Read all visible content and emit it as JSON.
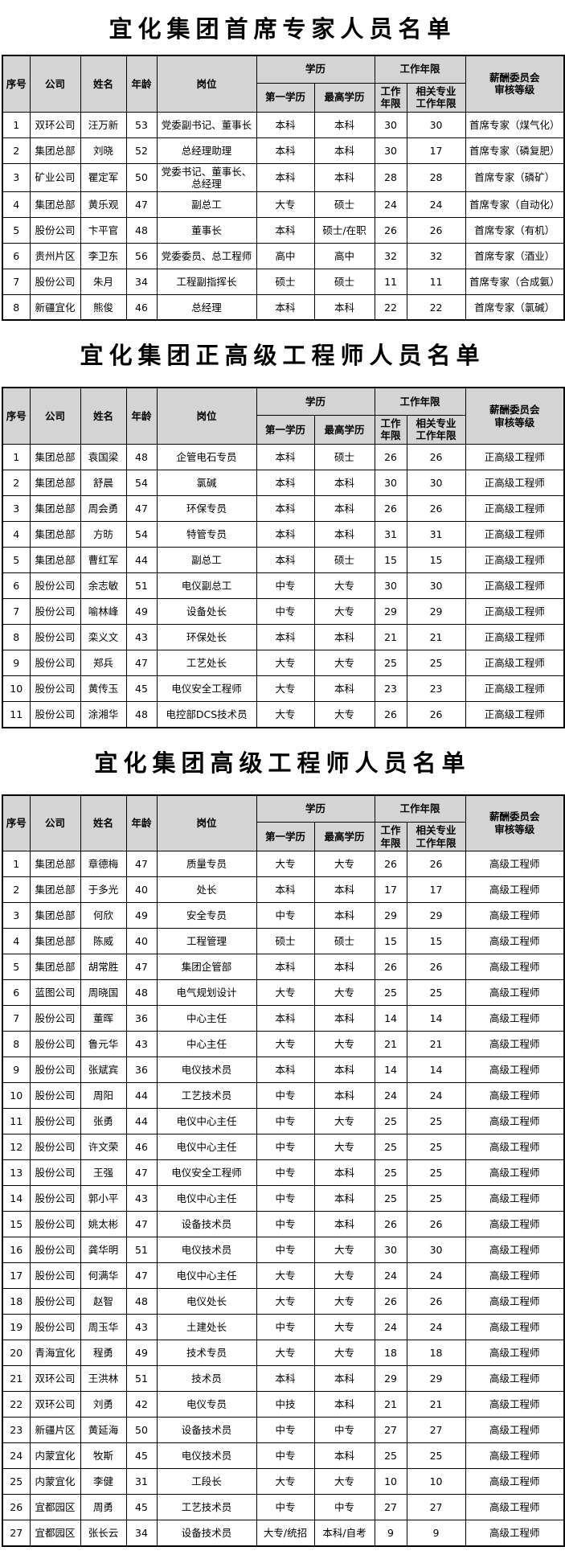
{
  "colors": {
    "header_bg": "#d4d4d4",
    "cell_bg": "#ffffff",
    "border": "#000000",
    "text": "#000000"
  },
  "tables": [
    {
      "title": "宜化集团首席专家人员名单",
      "header": {
        "no": "序号",
        "company": "公司",
        "name": "姓名",
        "age": "年龄",
        "position": "岗位",
        "education_group": "学历",
        "first_education": "第一学历",
        "highest_education": "最高学历",
        "work_years_group": "工作年限",
        "work_years": "工作\n年限",
        "related_work_years": "相关专业\n工作年限",
        "review_level": "薪酬委员会\n审核等级"
      },
      "rows": [
        [
          "1",
          "双环公司",
          "汪万新",
          "53",
          "党委副书记、董事长",
          "本科",
          "本科",
          "30",
          "30",
          "首席专家（煤气化）"
        ],
        [
          "2",
          "集团总部",
          "刘晓",
          "52",
          "总经理助理",
          "本科",
          "本科",
          "30",
          "17",
          "首席专家（磷复肥）"
        ],
        [
          "3",
          "矿业公司",
          "瞿定军",
          "50",
          "党委书记、董事长、总经理",
          "本科",
          "本科",
          "28",
          "28",
          "首席专家（磷矿）"
        ],
        [
          "4",
          "集团总部",
          "黄乐观",
          "47",
          "副总工",
          "大专",
          "硕士",
          "24",
          "24",
          "首席专家（自动化）"
        ],
        [
          "5",
          "股份公司",
          "卞平官",
          "48",
          "董事长",
          "本科",
          "硕士/在职",
          "26",
          "26",
          "首席专家（有机）"
        ],
        [
          "6",
          "贵州片区",
          "李卫东",
          "56",
          "党委委员、总工程师",
          "高中",
          "高中",
          "32",
          "32",
          "首席专家（酒业）"
        ],
        [
          "7",
          "股份公司",
          "朱月",
          "34",
          "工程副指挥长",
          "硕士",
          "硕士",
          "11",
          "11",
          "首席专家（合成氨）"
        ],
        [
          "8",
          "新疆宜化",
          "熊俊",
          "46",
          "总经理",
          "本科",
          "本科",
          "22",
          "22",
          "首席专家（氯碱）"
        ]
      ]
    },
    {
      "title": "宜化集团正高级工程师人员名单",
      "header": {
        "no": "序号",
        "company": "公司",
        "name": "姓名",
        "age": "年龄",
        "position": "岗位",
        "education_group": "学历",
        "first_education": "第一学历",
        "highest_education": "最高学历",
        "work_years_group": "工作年限",
        "work_years": "工作\n年限",
        "related_work_years": "相关专业\n工作年限",
        "review_level": "薪酬委员会\n审核等级"
      },
      "rows": [
        [
          "1",
          "集团总部",
          "袁国梁",
          "48",
          "企管电石专员",
          "本科",
          "硕士",
          "26",
          "26",
          "正高级工程师"
        ],
        [
          "2",
          "集团总部",
          "舒晨",
          "54",
          "氯碱",
          "本科",
          "本科",
          "30",
          "30",
          "正高级工程师"
        ],
        [
          "3",
          "集团总部",
          "周会勇",
          "47",
          "环保专员",
          "本科",
          "本科",
          "26",
          "26",
          "正高级工程师"
        ],
        [
          "4",
          "集团总部",
          "方昉",
          "54",
          "特管专员",
          "本科",
          "本科",
          "31",
          "31",
          "正高级工程师"
        ],
        [
          "5",
          "集团总部",
          "曹红军",
          "44",
          "副总工",
          "本科",
          "硕士",
          "15",
          "15",
          "正高级工程师"
        ],
        [
          "6",
          "股份公司",
          "余志敏",
          "51",
          "电仪副总工",
          "中专",
          "大专",
          "30",
          "30",
          "正高级工程师"
        ],
        [
          "7",
          "股份公司",
          "喻林峰",
          "49",
          "设备处长",
          "中专",
          "大专",
          "29",
          "29",
          "正高级工程师"
        ],
        [
          "8",
          "股份公司",
          "栾义文",
          "43",
          "环保处长",
          "本科",
          "本科",
          "21",
          "21",
          "正高级工程师"
        ],
        [
          "9",
          "股份公司",
          "郑兵",
          "47",
          "工艺处长",
          "大专",
          "大专",
          "25",
          "25",
          "正高级工程师"
        ],
        [
          "10",
          "股份公司",
          "黄传玉",
          "45",
          "电仪安全工程师",
          "大专",
          "本科",
          "23",
          "23",
          "正高级工程师"
        ],
        [
          "11",
          "股份公司",
          "涂湘华",
          "48",
          "电控部DCS技术员",
          "大专",
          "大专",
          "26",
          "26",
          "正高级工程师"
        ]
      ]
    },
    {
      "title": "宜化集团高级工程师人员名单",
      "header": {
        "no": "序号",
        "company": "公司",
        "name": "姓名",
        "age": "年龄",
        "position": "岗位",
        "education_group": "学历",
        "first_education": "第一学历",
        "highest_education": "最高学历",
        "work_years_group": "工作年限",
        "work_years": "工作\n年限",
        "related_work_years": "相关专业\n工作年限",
        "review_level": "薪酬委员会\n审核等级"
      },
      "rows": [
        [
          "1",
          "集团总部",
          "章德梅",
          "47",
          "质量专员",
          "大专",
          "大专",
          "26",
          "26",
          "高级工程师"
        ],
        [
          "2",
          "集团总部",
          "于多光",
          "40",
          "处长",
          "本科",
          "本科",
          "17",
          "17",
          "高级工程师"
        ],
        [
          "3",
          "集团总部",
          "何欣",
          "49",
          "安全专员",
          "中专",
          "本科",
          "29",
          "29",
          "高级工程师"
        ],
        [
          "4",
          "集团总部",
          "陈威",
          "40",
          "工程管理",
          "硕士",
          "硕士",
          "15",
          "15",
          "高级工程师"
        ],
        [
          "5",
          "集团总部",
          "胡常胜",
          "47",
          "集团企管部",
          "本科",
          "本科",
          "26",
          "26",
          "高级工程师"
        ],
        [
          "6",
          "蓝图公司",
          "周晓国",
          "48",
          "电气规划设计",
          "大专",
          "大专",
          "25",
          "25",
          "高级工程师"
        ],
        [
          "7",
          "股份公司",
          "董晖",
          "36",
          "中心主任",
          "本科",
          "本科",
          "14",
          "14",
          "高级工程师"
        ],
        [
          "8",
          "股份公司",
          "鲁元华",
          "43",
          "中心主任",
          "大专",
          "大专",
          "21",
          "21",
          "高级工程师"
        ],
        [
          "9",
          "股份公司",
          "张斌宾",
          "36",
          "电仪技术员",
          "本科",
          "本科",
          "14",
          "14",
          "高级工程师"
        ],
        [
          "10",
          "股份公司",
          "周阳",
          "44",
          "工艺技术员",
          "中专",
          "本科",
          "24",
          "24",
          "高级工程师"
        ],
        [
          "11",
          "股份公司",
          "张勇",
          "44",
          "电仪中心主任",
          "中专",
          "大专",
          "25",
          "25",
          "高级工程师"
        ],
        [
          "12",
          "股份公司",
          "许文荣",
          "46",
          "电仪中心主任",
          "中专",
          "大专",
          "25",
          "25",
          "高级工程师"
        ],
        [
          "13",
          "股份公司",
          "王强",
          "47",
          "电仪安全工程师",
          "中专",
          "本科",
          "25",
          "25",
          "高级工程师"
        ],
        [
          "14",
          "股份公司",
          "郭小平",
          "43",
          "电仪中心主任",
          "中专",
          "本科",
          "25",
          "25",
          "高级工程师"
        ],
        [
          "15",
          "股份公司",
          "姚太彬",
          "47",
          "设备技术员",
          "中专",
          "本科",
          "26",
          "26",
          "高级工程师"
        ],
        [
          "16",
          "股份公司",
          "龚华明",
          "51",
          "电仪技术员",
          "中专",
          "大专",
          "30",
          "30",
          "高级工程师"
        ],
        [
          "17",
          "股份公司",
          "何满华",
          "47",
          "电仪中心主任",
          "大专",
          "大专",
          "24",
          "24",
          "高级工程师"
        ],
        [
          "18",
          "股份公司",
          "赵智",
          "48",
          "电仪处长",
          "大专",
          "大专",
          "26",
          "26",
          "高级工程师"
        ],
        [
          "19",
          "股份公司",
          "周玉华",
          "43",
          "土建处长",
          "中专",
          "大专",
          "24",
          "24",
          "高级工程师"
        ],
        [
          "20",
          "青海宜化",
          "程勇",
          "49",
          "技术专员",
          "大专",
          "大专",
          "18",
          "18",
          "高级工程师"
        ],
        [
          "21",
          "双环公司",
          "王洪林",
          "51",
          "技术员",
          "本科",
          "本科",
          "29",
          "29",
          "高级工程师"
        ],
        [
          "22",
          "双环公司",
          "刘勇",
          "42",
          "电仪专员",
          "中技",
          "本科",
          "21",
          "21",
          "高级工程师"
        ],
        [
          "23",
          "新疆片区",
          "黄延海",
          "50",
          "设备技术员",
          "中专",
          "中专",
          "27",
          "27",
          "高级工程师"
        ],
        [
          "24",
          "内蒙宜化",
          "牧斯",
          "45",
          "电仪技术员",
          "中专",
          "本科",
          "25",
          "25",
          "高级工程师"
        ],
        [
          "25",
          "内蒙宜化",
          "李健",
          "31",
          "工段长",
          "大专",
          "大专",
          "10",
          "10",
          "高级工程师"
        ],
        [
          "26",
          "宜都园区",
          "周勇",
          "45",
          "工艺技术员",
          "中专",
          "中专",
          "27",
          "27",
          "高级工程师"
        ],
        [
          "27",
          "宜都园区",
          "张长云",
          "34",
          "设备技术员",
          "大专/统招",
          "本科/自考",
          "9",
          "9",
          "高级工程师"
        ]
      ]
    }
  ]
}
